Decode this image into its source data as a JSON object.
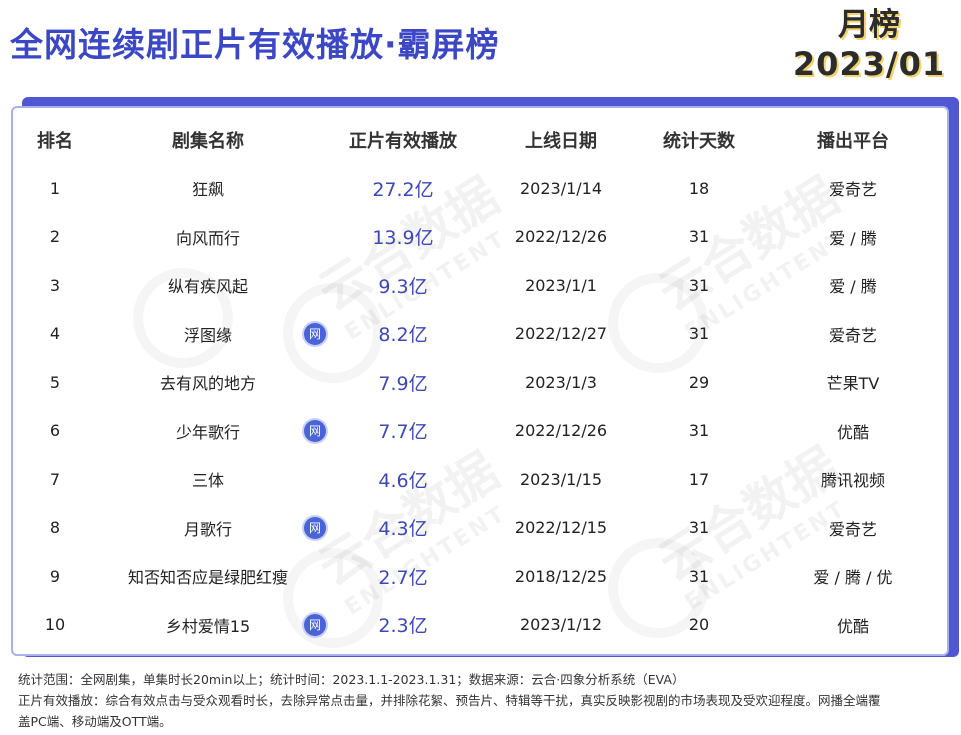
{
  "title": "全网连续剧正片有效播放·霸屏榜",
  "period": {
    "label": "月榜",
    "month": "2023/01"
  },
  "table": {
    "headers": [
      "排名",
      "剧集名称",
      "正片有效播放",
      "上线日期",
      "统计天数",
      "播出平台"
    ],
    "rows": [
      {
        "rank": "1",
        "name": "狂飙",
        "badge": "",
        "play": "27.2亿",
        "date": "2023/1/14",
        "days": "18",
        "platform": "爱奇艺"
      },
      {
        "rank": "2",
        "name": "向风而行",
        "badge": "",
        "play": "13.9亿",
        "date": "2022/12/26",
        "days": "31",
        "platform": "爱 / 腾"
      },
      {
        "rank": "3",
        "name": "纵有疾风起",
        "badge": "",
        "play": "9.3亿",
        "date": "2023/1/1",
        "days": "31",
        "platform": "爱 / 腾"
      },
      {
        "rank": "4",
        "name": "浮图缘",
        "badge": "网",
        "play": "8.2亿",
        "date": "2022/12/27",
        "days": "31",
        "platform": "爱奇艺"
      },
      {
        "rank": "5",
        "name": "去有风的地方",
        "badge": "",
        "play": "7.9亿",
        "date": "2023/1/3",
        "days": "29",
        "platform": "芒果TV"
      },
      {
        "rank": "6",
        "name": "少年歌行",
        "badge": "网",
        "play": "7.7亿",
        "date": "2022/12/26",
        "days": "31",
        "platform": "优酷"
      },
      {
        "rank": "7",
        "name": "三体",
        "badge": "",
        "play": "4.6亿",
        "date": "2023/1/15",
        "days": "17",
        "platform": "腾讯视频"
      },
      {
        "rank": "8",
        "name": "月歌行",
        "badge": "网",
        "play": "4.3亿",
        "date": "2022/12/15",
        "days": "31",
        "platform": "爱奇艺"
      },
      {
        "rank": "9",
        "name": "知否知否应是绿肥红瘦",
        "badge": "",
        "play": "2.7亿",
        "date": "2018/12/25",
        "days": "31",
        "platform": "爱 / 腾 / 优"
      },
      {
        "rank": "10",
        "name": "乡村爱情15",
        "badge": "网",
        "play": "2.3亿",
        "date": "2023/1/12",
        "days": "20",
        "platform": "优酷"
      }
    ]
  },
  "watermark": {
    "main": "云合数据",
    "sub": "ENLIGHTENT"
  },
  "footnote": {
    "line1": "统计范围：全网剧集，单集时长20min以上；统计时间：2023.1.1-2023.1.31；数据来源：云合·四象分析系统（EVA）",
    "line2": "正片有效播放：综合有效点击与受众观看时长，去除异常点击量，并排除花絮、预告片、特辑等干扰，真实反映影视剧的市场表现及受欢迎程度。网播全端覆",
    "line3": "盖PC端、移动端及OTT端。"
  },
  "colors": {
    "title": "#3b47c4",
    "panel_shadow": "#4f57d3",
    "play_value": "#3e48b5",
    "badge": "#4a63d8"
  }
}
